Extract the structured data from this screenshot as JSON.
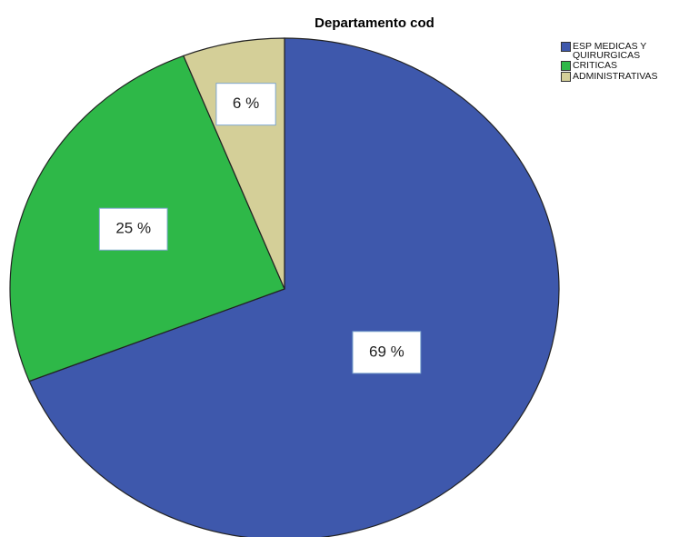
{
  "chart_data": {
    "type": "pie",
    "title": "Departamento cod",
    "categories": [
      "ESP MEDICAS Y QUIRURGICAS",
      "CRITICAS",
      "ADMINISTRATIVAS"
    ],
    "values": [
      69,
      25,
      6
    ],
    "value_labels": [
      "69 %",
      "25 %",
      "6 %"
    ],
    "colors": [
      "#3e58ac",
      "#2eb848",
      "#d4cf98"
    ],
    "legend": "top-right"
  }
}
